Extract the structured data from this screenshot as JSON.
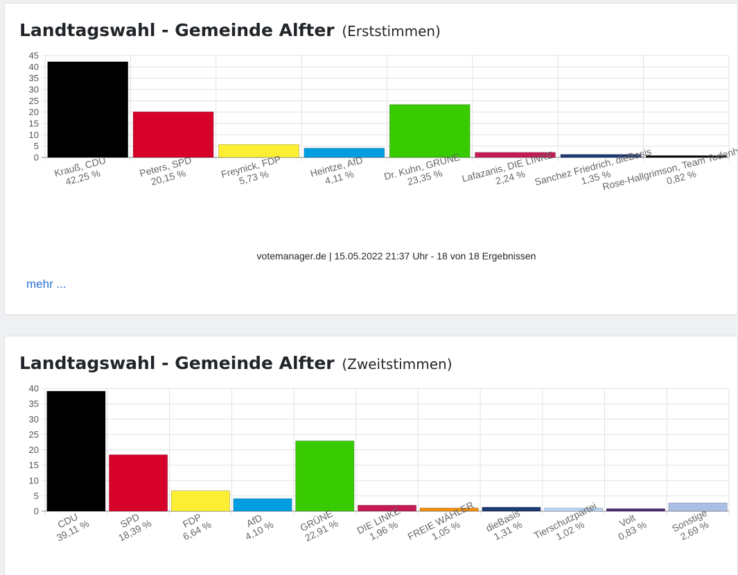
{
  "chart_data": [
    {
      "type": "bar",
      "title": "Landtagswahl - Gemeinde Alfter",
      "subtitle": "(Erststimmen)",
      "categories": [
        "Krauß, CDU",
        "Peters, SPD",
        "Freynick, FDP",
        "Heintze, AfD",
        "Dr. Kuhn, GRÜNE",
        "Lafazanis, DIE LINKE",
        "Sanchez Friedrich, dieBasis",
        "Rose-Hallgrimson, Team Todenhöfer"
      ],
      "value_labels": [
        "42,25 %",
        "20,15 %",
        "5,73 %",
        "4,11 %",
        "23,35 %",
        "2,24 %",
        "1,35 %",
        "0,82 %"
      ],
      "values": [
        42.25,
        20.15,
        5.73,
        4.11,
        23.35,
        2.24,
        1.35,
        0.82
      ],
      "colors": [
        "#000000",
        "#d7002b",
        "#fcee32",
        "#009ee0",
        "#37cb00",
        "#c41c52",
        "#1d3a75",
        "#000000"
      ],
      "yticks": [
        "0",
        "5",
        "10",
        "15",
        "20",
        "25",
        "30",
        "35",
        "40",
        "45"
      ],
      "ylim": [
        0,
        45
      ],
      "grid": true,
      "legend": "none"
    },
    {
      "type": "bar",
      "title": "Landtagswahl - Gemeinde Alfter",
      "subtitle": "(Zweitstimmen)",
      "categories": [
        "CDU",
        "SPD",
        "FDP",
        "AfD",
        "GRÜNE",
        "DIE LINKE",
        "FREIE WÄHLER",
        "dieBasis",
        "Tierschutzpartei",
        "Volt",
        "Sonstige"
      ],
      "value_labels": [
        "39,11 %",
        "18,39 %",
        "6,64 %",
        "4,10 %",
        "22,91 %",
        "1,96 %",
        "1,05 %",
        "1,31 %",
        "1,02 %",
        "0,83 %",
        "2,69 %"
      ],
      "values": [
        39.11,
        18.39,
        6.64,
        4.1,
        22.91,
        1.96,
        1.05,
        1.31,
        1.02,
        0.83,
        2.69
      ],
      "colors": [
        "#000000",
        "#d7002b",
        "#fcee32",
        "#009ee0",
        "#37cb00",
        "#c41c52",
        "#f4900c",
        "#1d3a75",
        "#bcd5f5",
        "#4c2a73",
        "#a9bfe5"
      ],
      "yticks": [
        "0",
        "5",
        "10",
        "15",
        "20",
        "25",
        "30",
        "35",
        "40"
      ],
      "ylim": [
        0,
        40
      ],
      "grid": true,
      "legend": "none"
    }
  ],
  "card1": {
    "source": "votemanager.de | 15.05.2022 21:37 Uhr - 18 von 18 Ergebnissen",
    "more_link": "mehr ..."
  }
}
